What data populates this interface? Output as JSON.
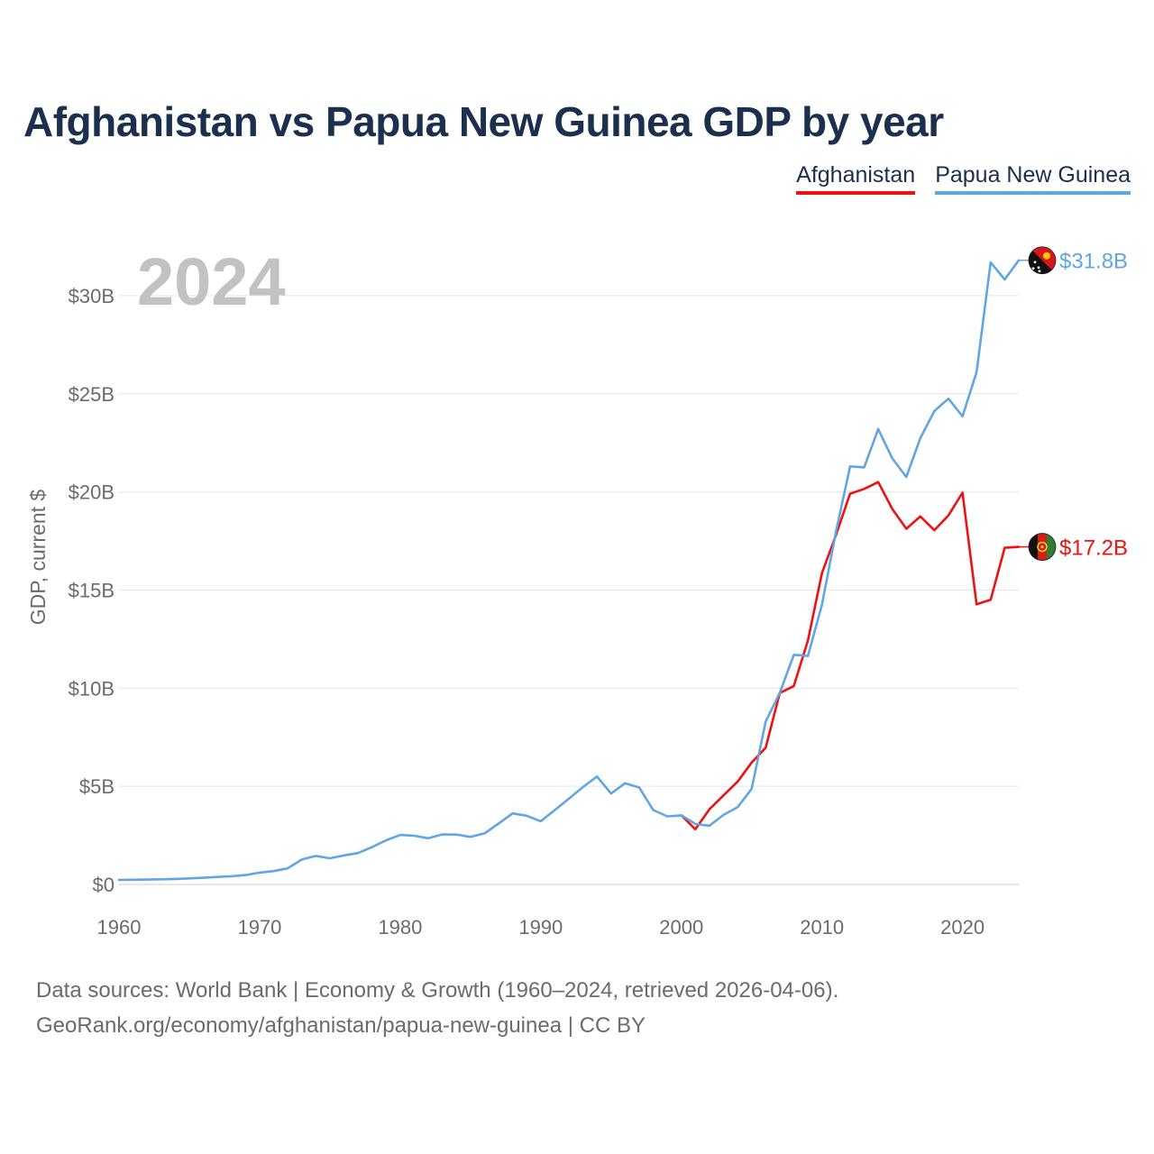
{
  "page": {
    "title": "Afghanistan vs Papua New Guinea GDP by year",
    "source_line1": "Data sources: World Bank | Economy & Growth (1960–2024, retrieved 2026-04-06).",
    "source_line2": "GeoRank.org/economy/afghanistan/papua-new-guinea | CC BY"
  },
  "chart_data": {
    "type": "line",
    "title": "Afghanistan vs Papua New Guinea GDP by year",
    "xlabel": "",
    "ylabel": "GDP, current $",
    "xlim": [
      1960,
      2024
    ],
    "ylim": [
      0,
      32
    ],
    "x_ticks": [
      1960,
      1970,
      1980,
      1990,
      2000,
      2010,
      2020
    ],
    "x_tick_labels": [
      "1960",
      "1970",
      "1980",
      "1990",
      "2000",
      "2010",
      "2020"
    ],
    "y_ticks": [
      0,
      5,
      10,
      15,
      20,
      25,
      30
    ],
    "y_tick_labels": [
      "$0",
      "$5B",
      "$10B",
      "$15B",
      "$20B",
      "$25B",
      "$30B"
    ],
    "grid": true,
    "legend_position": "top-right",
    "year_overlay": "2024",
    "series": [
      {
        "name": "Afghanistan",
        "color": "#ee1111",
        "flag": "afghanistan-flag-icon",
        "end_label": "$17.2B",
        "x": [
          2000,
          2001,
          2002,
          2003,
          2004,
          2005,
          2006,
          2007,
          2008,
          2009,
          2010,
          2011,
          2012,
          2013,
          2014,
          2015,
          2016,
          2017,
          2018,
          2019,
          2020,
          2021,
          2022,
          2023,
          2024
        ],
        "values": [
          3.52,
          2.81,
          3.83,
          4.54,
          5.23,
          6.21,
          6.97,
          9.75,
          10.11,
          12.42,
          15.86,
          17.81,
          19.91,
          20.15,
          20.5,
          19.13,
          18.12,
          18.75,
          18.05,
          18.8,
          19.96,
          14.27,
          14.5,
          17.15,
          17.2
        ]
      },
      {
        "name": "Papua New Guinea",
        "color": "#62a5e3",
        "flag": "papua-new-guinea-flag-icon",
        "end_label": "$31.8B",
        "x": [
          1960,
          1961,
          1962,
          1963,
          1964,
          1965,
          1966,
          1967,
          1968,
          1969,
          1970,
          1971,
          1972,
          1973,
          1974,
          1975,
          1976,
          1977,
          1978,
          1979,
          1980,
          1981,
          1982,
          1983,
          1984,
          1985,
          1986,
          1987,
          1988,
          1989,
          1990,
          1991,
          1992,
          1993,
          1994,
          1995,
          1996,
          1997,
          1998,
          1999,
          2000,
          2001,
          2002,
          2003,
          2004,
          2005,
          2006,
          2007,
          2008,
          2009,
          2010,
          2011,
          2012,
          2013,
          2014,
          2015,
          2016,
          2017,
          2018,
          2019,
          2020,
          2021,
          2022,
          2023,
          2024
        ],
        "values": [
          0.23,
          0.24,
          0.25,
          0.26,
          0.28,
          0.31,
          0.34,
          0.38,
          0.42,
          0.48,
          0.6,
          0.68,
          0.82,
          1.27,
          1.45,
          1.33,
          1.48,
          1.6,
          1.9,
          2.25,
          2.52,
          2.48,
          2.35,
          2.55,
          2.54,
          2.42,
          2.6,
          3.1,
          3.62,
          3.5,
          3.22,
          3.79,
          4.37,
          4.96,
          5.5,
          4.63,
          5.16,
          4.94,
          3.79,
          3.47,
          3.52,
          3.08,
          2.99,
          3.54,
          3.93,
          4.87,
          8.3,
          9.76,
          11.7,
          11.64,
          14.25,
          17.98,
          21.3,
          21.25,
          23.2,
          21.71,
          20.76,
          22.74,
          24.12,
          24.75,
          23.85,
          26.1,
          31.69,
          30.82,
          31.8
        ]
      }
    ]
  }
}
